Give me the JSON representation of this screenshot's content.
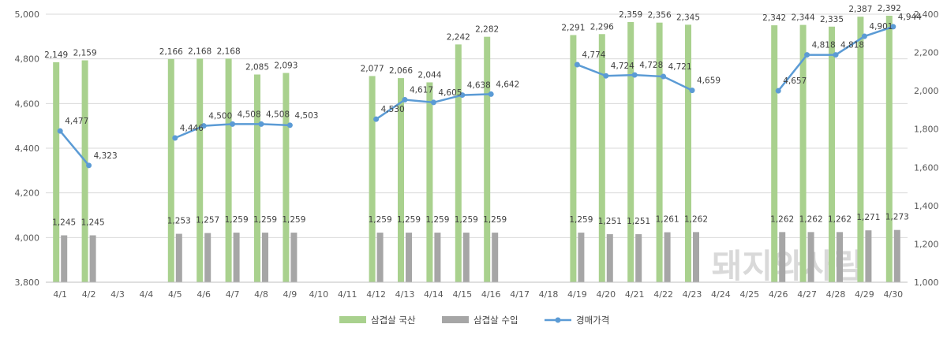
{
  "chart_data": {
    "type": "bar",
    "categories": [
      "4/1",
      "4/2",
      "4/3",
      "4/4",
      "4/5",
      "4/6",
      "4/7",
      "4/8",
      "4/9",
      "4/10",
      "4/11",
      "4/12",
      "4/13",
      "4/14",
      "4/15",
      "4/16",
      "4/17",
      "4/18",
      "4/19",
      "4/20",
      "4/21",
      "4/22",
      "4/23",
      "4/24",
      "4/25",
      "4/26",
      "4/27",
      "4/28",
      "4/29",
      "4/30"
    ],
    "series": [
      {
        "name": "삼겹살 국산",
        "type": "bar",
        "axis": "right",
        "color": "#a9d18e",
        "values": [
          2149,
          2159,
          null,
          null,
          2166,
          2168,
          2168,
          2085,
          2093,
          null,
          null,
          2077,
          2066,
          2044,
          2242,
          2282,
          null,
          null,
          2291,
          2296,
          2359,
          2356,
          2345,
          null,
          null,
          2342,
          2344,
          2335,
          2387,
          2392
        ]
      },
      {
        "name": "삼겹살 수입",
        "type": "bar",
        "axis": "right",
        "color": "#a6a6a6",
        "values": [
          1245,
          1245,
          null,
          null,
          1253,
          1257,
          1259,
          1259,
          1259,
          null,
          null,
          1259,
          1259,
          1259,
          1259,
          1259,
          null,
          null,
          1259,
          1251,
          1251,
          1261,
          1262,
          null,
          null,
          1262,
          1262,
          1262,
          1271,
          1273
        ]
      },
      {
        "name": "경매가격",
        "type": "line",
        "axis": "left",
        "color": "#5b9bd5",
        "values": [
          4477,
          4323,
          null,
          null,
          4446,
          4500,
          4508,
          4508,
          4503,
          null,
          null,
          4530,
          4617,
          4605,
          4638,
          4642,
          null,
          null,
          4774,
          4724,
          4728,
          4721,
          4659,
          null,
          null,
          4657,
          4818,
          4818,
          4901,
          4944
        ]
      }
    ],
    "left_axis": {
      "ylim": [
        3800,
        5000
      ],
      "ticks": [
        "3,800",
        "4,000",
        "4,200",
        "4,400",
        "4,600",
        "4,800",
        "5,000"
      ]
    },
    "right_axis": {
      "ylim": [
        1000,
        2400
      ],
      "ticks": [
        "1,000",
        "1,200",
        "1,400",
        "1,600",
        "1,800",
        "2,000",
        "2,200",
        "2,400"
      ]
    },
    "grid": true,
    "legend_position": "bottom"
  },
  "watermark": "돼지와사람"
}
